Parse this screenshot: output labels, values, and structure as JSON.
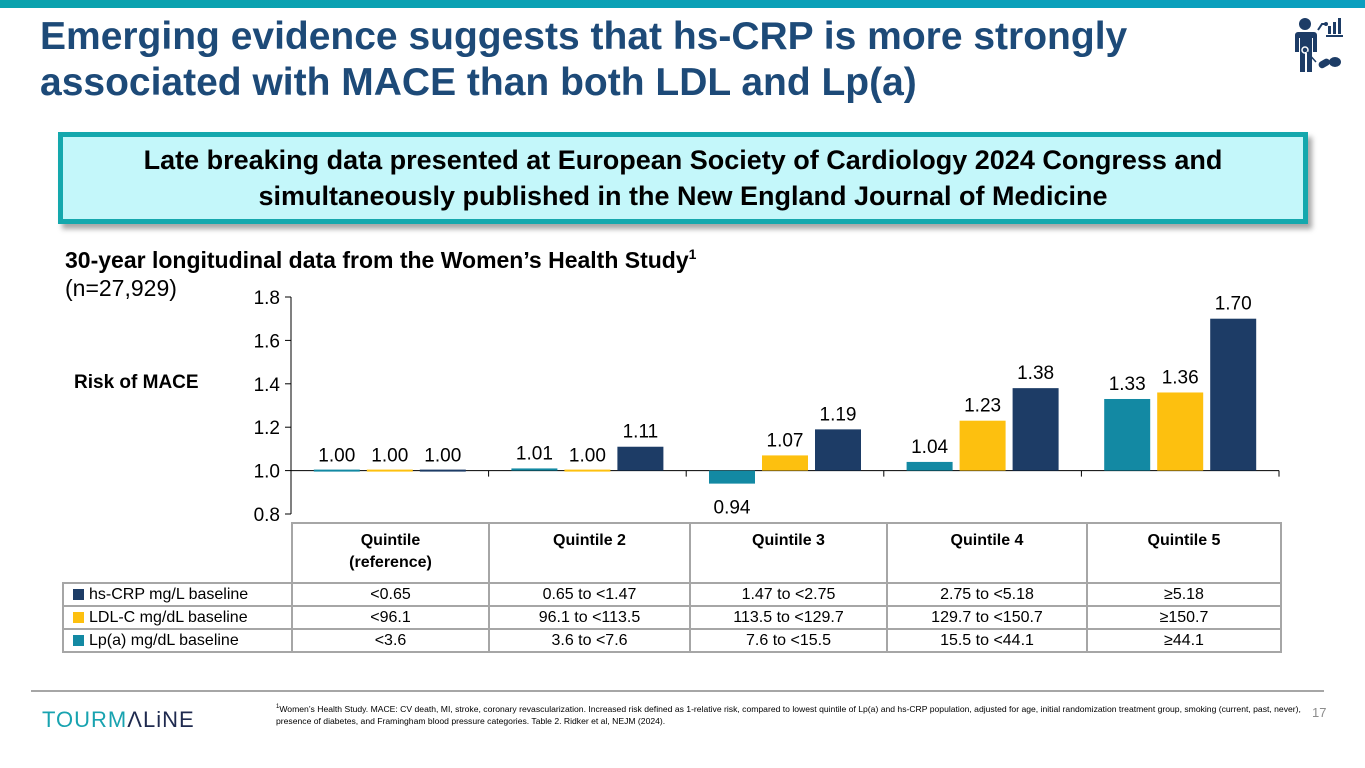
{
  "header": {
    "title": "Emerging evidence suggests that hs-CRP is more strongly associated with MACE than both LDL and Lp(a)",
    "icon": "patient-data-pills-icon"
  },
  "callout": {
    "text": "Late breaking data presented at European Society of Cardiology 2024 Congress and simultaneously published in the New England Journal of Medicine"
  },
  "study": {
    "subtitle": "30-year longitudinal data from the Women’s Health Study",
    "subtitle_sup": "1",
    "n": "(n=27,929)"
  },
  "colors": {
    "hs_crp": "#1d3c66",
    "ldl_c": "#fdc00f",
    "lpa": "#1389a3",
    "title": "#1d4a78",
    "callout_bg": "#c4f7fa",
    "callout_border": "#14a8ad"
  },
  "chart_data": {
    "type": "bar",
    "title": "",
    "xlabel": "",
    "ylabel": "Risk of MACE",
    "ylim": [
      0.8,
      1.8
    ],
    "baseline": 1.0,
    "yticks": [
      "1.8",
      "1.6",
      "1.4",
      "1.2",
      "1.0",
      "0.8"
    ],
    "ytick_values": [
      1.8,
      1.6,
      1.4,
      1.2,
      1.0,
      0.8
    ],
    "categories": [
      "Quintile (reference)",
      "Quintile 2",
      "Quintile 3",
      "Quintile 4",
      "Quintile 5"
    ],
    "series": [
      {
        "name": "Lp(a) mg/dL baseline",
        "color": "#1389a3",
        "values": [
          1.0,
          1.01,
          0.94,
          1.04,
          1.33
        ],
        "labels": [
          "1.00",
          "1.01",
          "0.94",
          "1.04",
          "1.33"
        ]
      },
      {
        "name": "LDL-C mg/dL baseline",
        "color": "#fdc00f",
        "values": [
          1.0,
          1.0,
          1.07,
          1.23,
          1.36
        ],
        "labels": [
          "1.00",
          "1.00",
          "1.07",
          "1.23",
          "1.36"
        ]
      },
      {
        "name": "hs-CRP mg/L baseline",
        "color": "#1d3c66",
        "values": [
          1.0,
          1.11,
          1.19,
          1.38,
          1.7
        ],
        "labels": [
          "1.00",
          "1.11",
          "1.19",
          "1.38",
          "1.70"
        ]
      }
    ],
    "grid": false,
    "legend": "table-below"
  },
  "table": {
    "headers": [
      "Quintile\n(reference)",
      "Quintile 2",
      "Quintile 3",
      "Quintile 4",
      "Quintile 5"
    ],
    "header_line1": [
      "Quintile",
      "Quintile 2",
      "Quintile 3",
      "Quintile 4",
      "Quintile 5"
    ],
    "header_line2": [
      "(reference)",
      "",
      "",
      "",
      ""
    ],
    "rows": [
      {
        "label": "hs-CRP mg/L baseline",
        "color": "#1d3c66",
        "cells": [
          "<0.65",
          "0.65 to <1.47",
          "1.47 to <2.75",
          "2.75 to <5.18",
          "≥5.18"
        ]
      },
      {
        "label": "LDL-C mg/dL baseline",
        "color": "#fdc00f",
        "cells": [
          "<96.1",
          "96.1 to <113.5",
          "113.5 to <129.7",
          "129.7 to <150.7",
          "≥150.7"
        ]
      },
      {
        "label": "Lp(a) mg/dL baseline",
        "color": "#1389a3",
        "cells": [
          "<3.6",
          "3.6 to <7.6",
          "7.6 to <15.5",
          "15.5 to <44.1",
          "≥44.1"
        ]
      }
    ]
  },
  "footer": {
    "logo_part1": "TOURM",
    "logo_part2": "ΛLiNE",
    "footnote_sup": "1",
    "footnote": "Women’s Health Study. MACE: CV death, MI, stroke, coronary revascularization. Increased risk defined as 1-relative risk, compared to lowest quintile of  Lp(a) and hs-CRP population, adjusted for age, initial randomization treatment group, smoking (current, past, never), presence of diabetes, and Framingham blood pressure categories. Table 2. Ridker et al, NEJM (2024).",
    "page_number": "17"
  }
}
